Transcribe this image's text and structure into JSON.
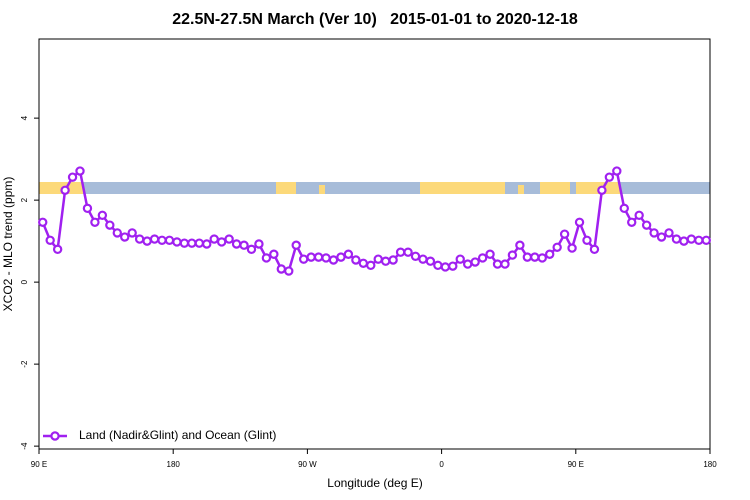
{
  "chart_data": {
    "type": "line",
    "title": "22.5N-27.5N March (Ver 10)   2015-01-01 to 2020-12-18",
    "x_label": "Longitude (deg E)",
    "y_label": "XCO2 - MLO trend (ppm)",
    "x": [
      92.5,
      97.5,
      102.5,
      107.5,
      112.5,
      117.5,
      122.5,
      127.5,
      132.5,
      137.5,
      142.5,
      147.5,
      152.5,
      157.5,
      162.5,
      167.5,
      172.5,
      177.5,
      182.5,
      187.5,
      192.5,
      197.5,
      202.5,
      207.5,
      212.5,
      217.5,
      222.5,
      227.5,
      232.5,
      237.5,
      242.5,
      247.5,
      252.5,
      257.5,
      262.5,
      267.5,
      272.5,
      277.5,
      282.5,
      287.5,
      292.5,
      297.5,
      302.5,
      307.5,
      312.5,
      317.5,
      322.5,
      327.5,
      332.5,
      337.5,
      342.5,
      347.5,
      352.5,
      357.5,
      362.5,
      367.5,
      372.5,
      377.5,
      382.5,
      387.5,
      392.5,
      397.5,
      402.5,
      407.5,
      412.5,
      417.5,
      422.5,
      427.5,
      432.5,
      437.5,
      442.5,
      447.5,
      452.5,
      457.5,
      462.5,
      467.5,
      472.5,
      477.5,
      482.5,
      487.5,
      492.5,
      497.5,
      502.5,
      507.5,
      512.5,
      517.5,
      522.5,
      527.5,
      532.5,
      537.5
    ],
    "series": [
      {
        "name": "Land (Nadir&Glint) and Ocean (Glint)",
        "color": "#a020f0",
        "values": [
          1.46,
          1.02,
          0.8,
          2.24,
          2.56,
          2.71,
          1.8,
          1.46,
          1.63,
          1.39,
          1.2,
          1.1,
          1.2,
          1.05,
          1.0,
          1.05,
          1.02,
          1.02,
          0.98,
          0.95,
          0.95,
          0.95,
          0.93,
          1.05,
          0.98,
          1.05,
          0.93,
          0.9,
          0.8,
          0.93,
          0.59,
          0.68,
          0.32,
          0.27,
          0.9,
          0.56,
          0.61,
          0.61,
          0.59,
          0.54,
          0.61,
          0.68,
          0.54,
          0.46,
          0.41,
          0.56,
          0.51,
          0.54,
          0.73,
          0.73,
          0.63,
          0.56,
          0.51,
          0.41,
          0.37,
          0.39,
          0.56,
          0.44,
          0.49,
          0.59,
          0.68,
          0.44,
          0.44,
          0.66,
          0.9,
          0.61,
          0.61,
          0.59,
          0.68,
          0.85,
          1.17,
          0.83,
          1.46,
          1.02,
          0.8,
          2.24,
          2.56,
          2.71,
          1.8,
          1.46,
          1.63,
          1.39,
          1.2,
          1.1,
          1.2,
          1.05,
          1.0,
          1.05,
          1.02,
          1.02
        ]
      }
    ],
    "xlim": [
      90,
      540
    ],
    "xticks": [
      {
        "value": 90,
        "label": "90 E"
      },
      180,
      {
        "value": 270,
        "label": "90 W"
      },
      {
        "value": 360,
        "label": "0"
      },
      {
        "value": 450,
        "label": "90 E"
      },
      {
        "value": 540,
        "label": "180"
      }
    ],
    "ylim": [
      -4.07,
      5.93
    ],
    "yticks": [
      -4,
      -2,
      0,
      2,
      4
    ],
    "legend": "bottom-left",
    "grid": false
  }
}
